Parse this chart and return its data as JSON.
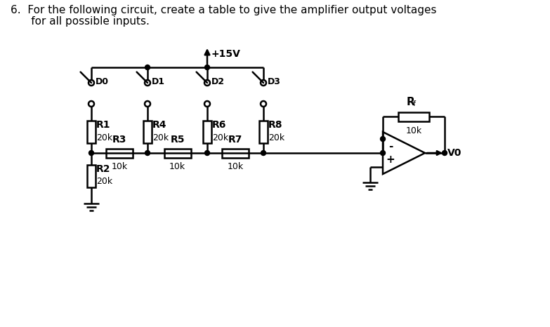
{
  "title_line1": "6.  For the following circuit, create a table to give the amplifier output voltages",
  "title_line2": "      for all possible inputs.",
  "bg_color": "#ffffff",
  "line_color": "#000000",
  "text_color": "#000000",
  "supply_label": "+15V",
  "diode_labels": [
    "D0",
    "D1",
    "D2",
    "D3"
  ],
  "res_vert_labels": [
    "R1",
    "R4",
    "R6",
    "R8"
  ],
  "res_vert_values": [
    "20k",
    "20k",
    "20k",
    "20k"
  ],
  "res_horiz_labels": [
    "R3",
    "R5",
    "R7"
  ],
  "res_horiz_values": [
    "10k",
    "10k",
    "10k"
  ],
  "feedback_label": "R",
  "feedback_sub": "f",
  "feedback_value": "10k",
  "r2_label": "R2",
  "r2_value": "20k",
  "output_label": "V0",
  "minus_sign": "-",
  "plus_sign": "+"
}
